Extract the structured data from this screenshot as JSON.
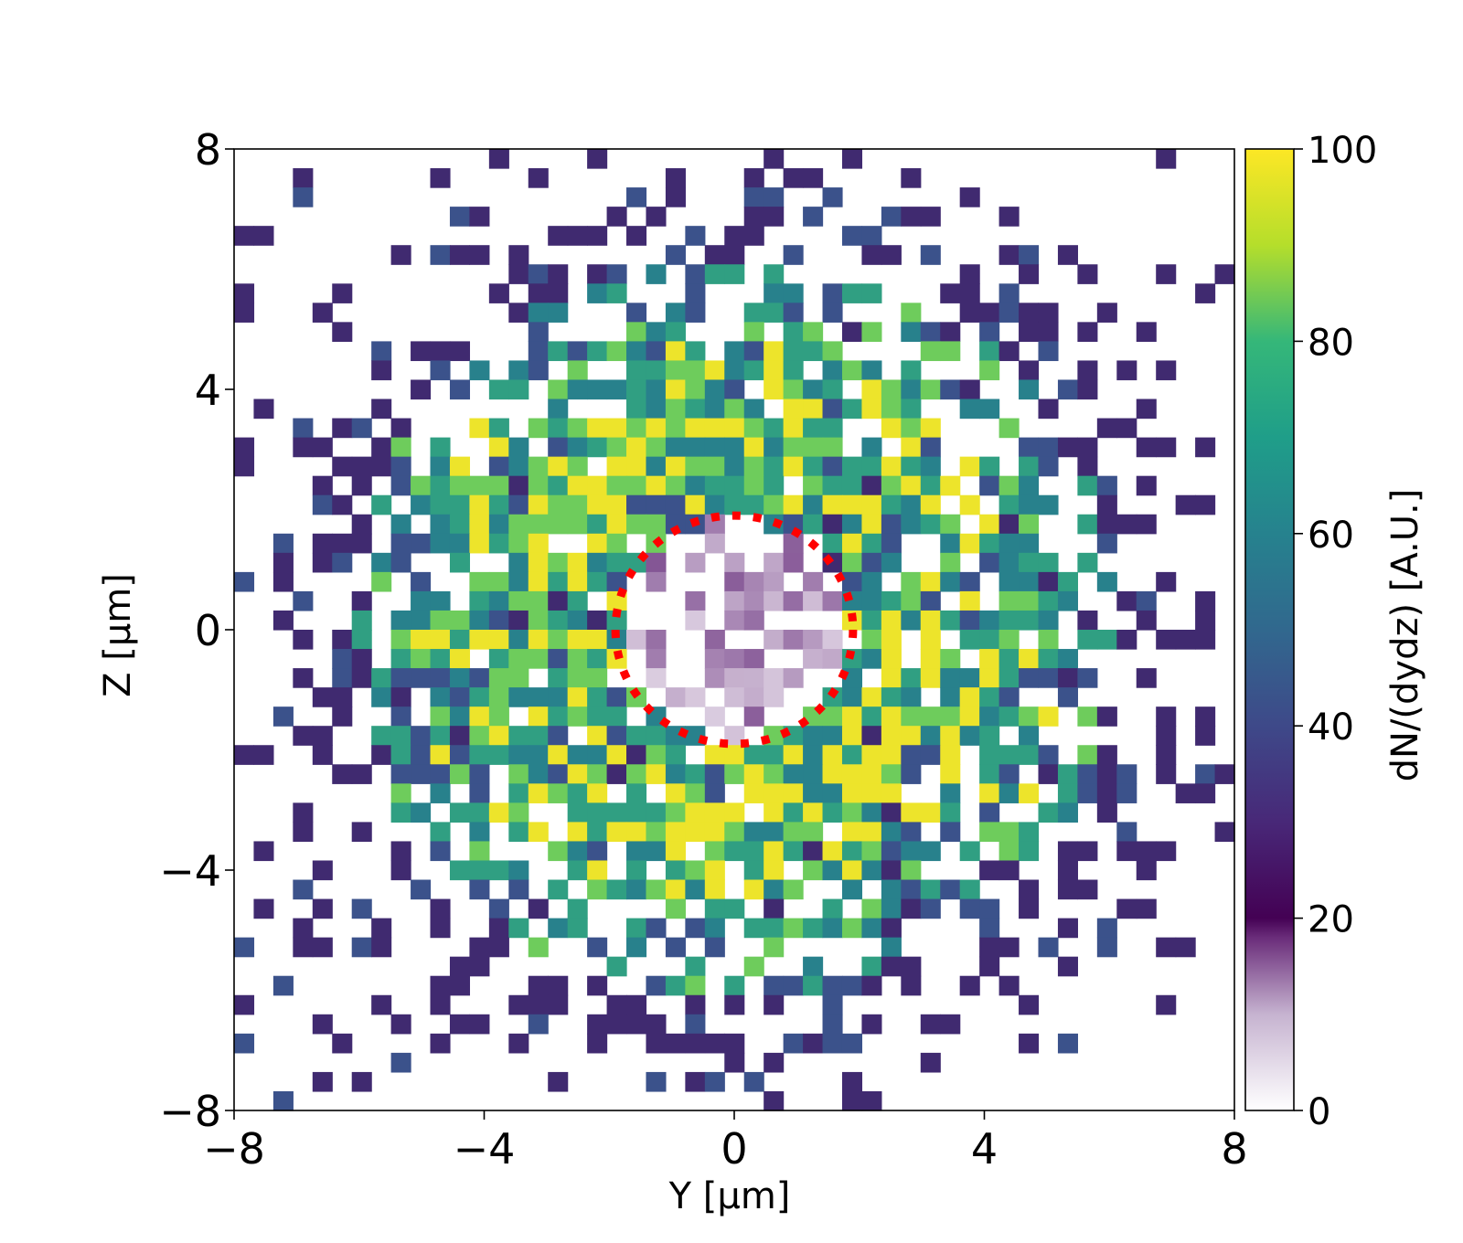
{
  "chart_data": {
    "type": "heatmap",
    "title": "",
    "xlabel": "Y  [μm]",
    "ylabel": "Z  [μm]",
    "xlim": [
      -8,
      8
    ],
    "ylim": [
      -8,
      8
    ],
    "xticks": [
      "−8",
      "−4",
      "0",
      "4",
      "8"
    ],
    "xtick_values": [
      -8,
      -4,
      0,
      4,
      8
    ],
    "yticks": [
      "−8",
      "−4",
      "0",
      "4",
      "8"
    ],
    "ytick_values": [
      -8,
      -4,
      0,
      4,
      8
    ],
    "grid": false,
    "bins": {
      "nx": 51,
      "ny": 50
    },
    "colorbar": {
      "label": "dN/(dydz)   [A.U.]",
      "range": [
        0,
        100
      ],
      "ticks": [
        "0",
        "20",
        "40",
        "60",
        "80",
        "100"
      ],
      "tick_values": [
        0,
        20,
        40,
        60,
        80,
        100
      ],
      "colormap": "white→purple below 20, viridis 20–100"
    },
    "description_of_data": {
      "outer_region": "scattered counts 20–100 with many empty (white) bins, falling off radially",
      "central_hole_values": "approximately 5–20 inside the dotted circle"
    },
    "annotations": [
      {
        "type": "circle",
        "style": "dotted",
        "color": "#ff0000",
        "center": [
          0,
          0
        ],
        "radius": 1.9
      }
    ],
    "colors": {
      "viridis": [
        "#440154",
        "#3b528b",
        "#21918c",
        "#5ec962",
        "#fde725"
      ],
      "low_purple": "#5b2a70",
      "annotation": "#ff0000"
    }
  }
}
